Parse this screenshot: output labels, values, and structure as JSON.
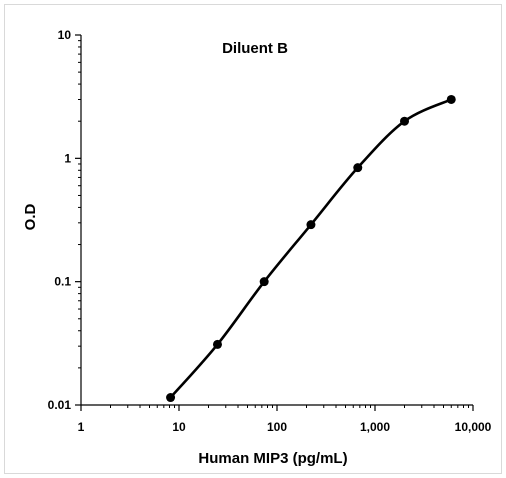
{
  "chart_data": {
    "type": "line",
    "title": "Diluent B",
    "xlabel": "Human MIP3 (pg/mL)",
    "ylabel": "O.D",
    "xscale": "log",
    "yscale": "log",
    "xlim": [
      1,
      10000
    ],
    "ylim": [
      0.01,
      10
    ],
    "xticks": [
      1,
      10,
      100,
      1000,
      10000
    ],
    "xtick_labels": [
      "1",
      "10",
      "100",
      "1,000",
      "10,000"
    ],
    "yticks": [
      0.01,
      0.1,
      1,
      10
    ],
    "ytick_labels": [
      "0.01",
      "0.1",
      "1",
      "10"
    ],
    "grid": false,
    "legend": "none",
    "line_color": "#000000",
    "series": [
      {
        "x": [
          8.2,
          24.7,
          74,
          222,
          667,
          2000,
          6000
        ],
        "y": [
          0.0115,
          0.031,
          0.1,
          0.29,
          0.84,
          2.0,
          3.0
        ]
      }
    ]
  }
}
